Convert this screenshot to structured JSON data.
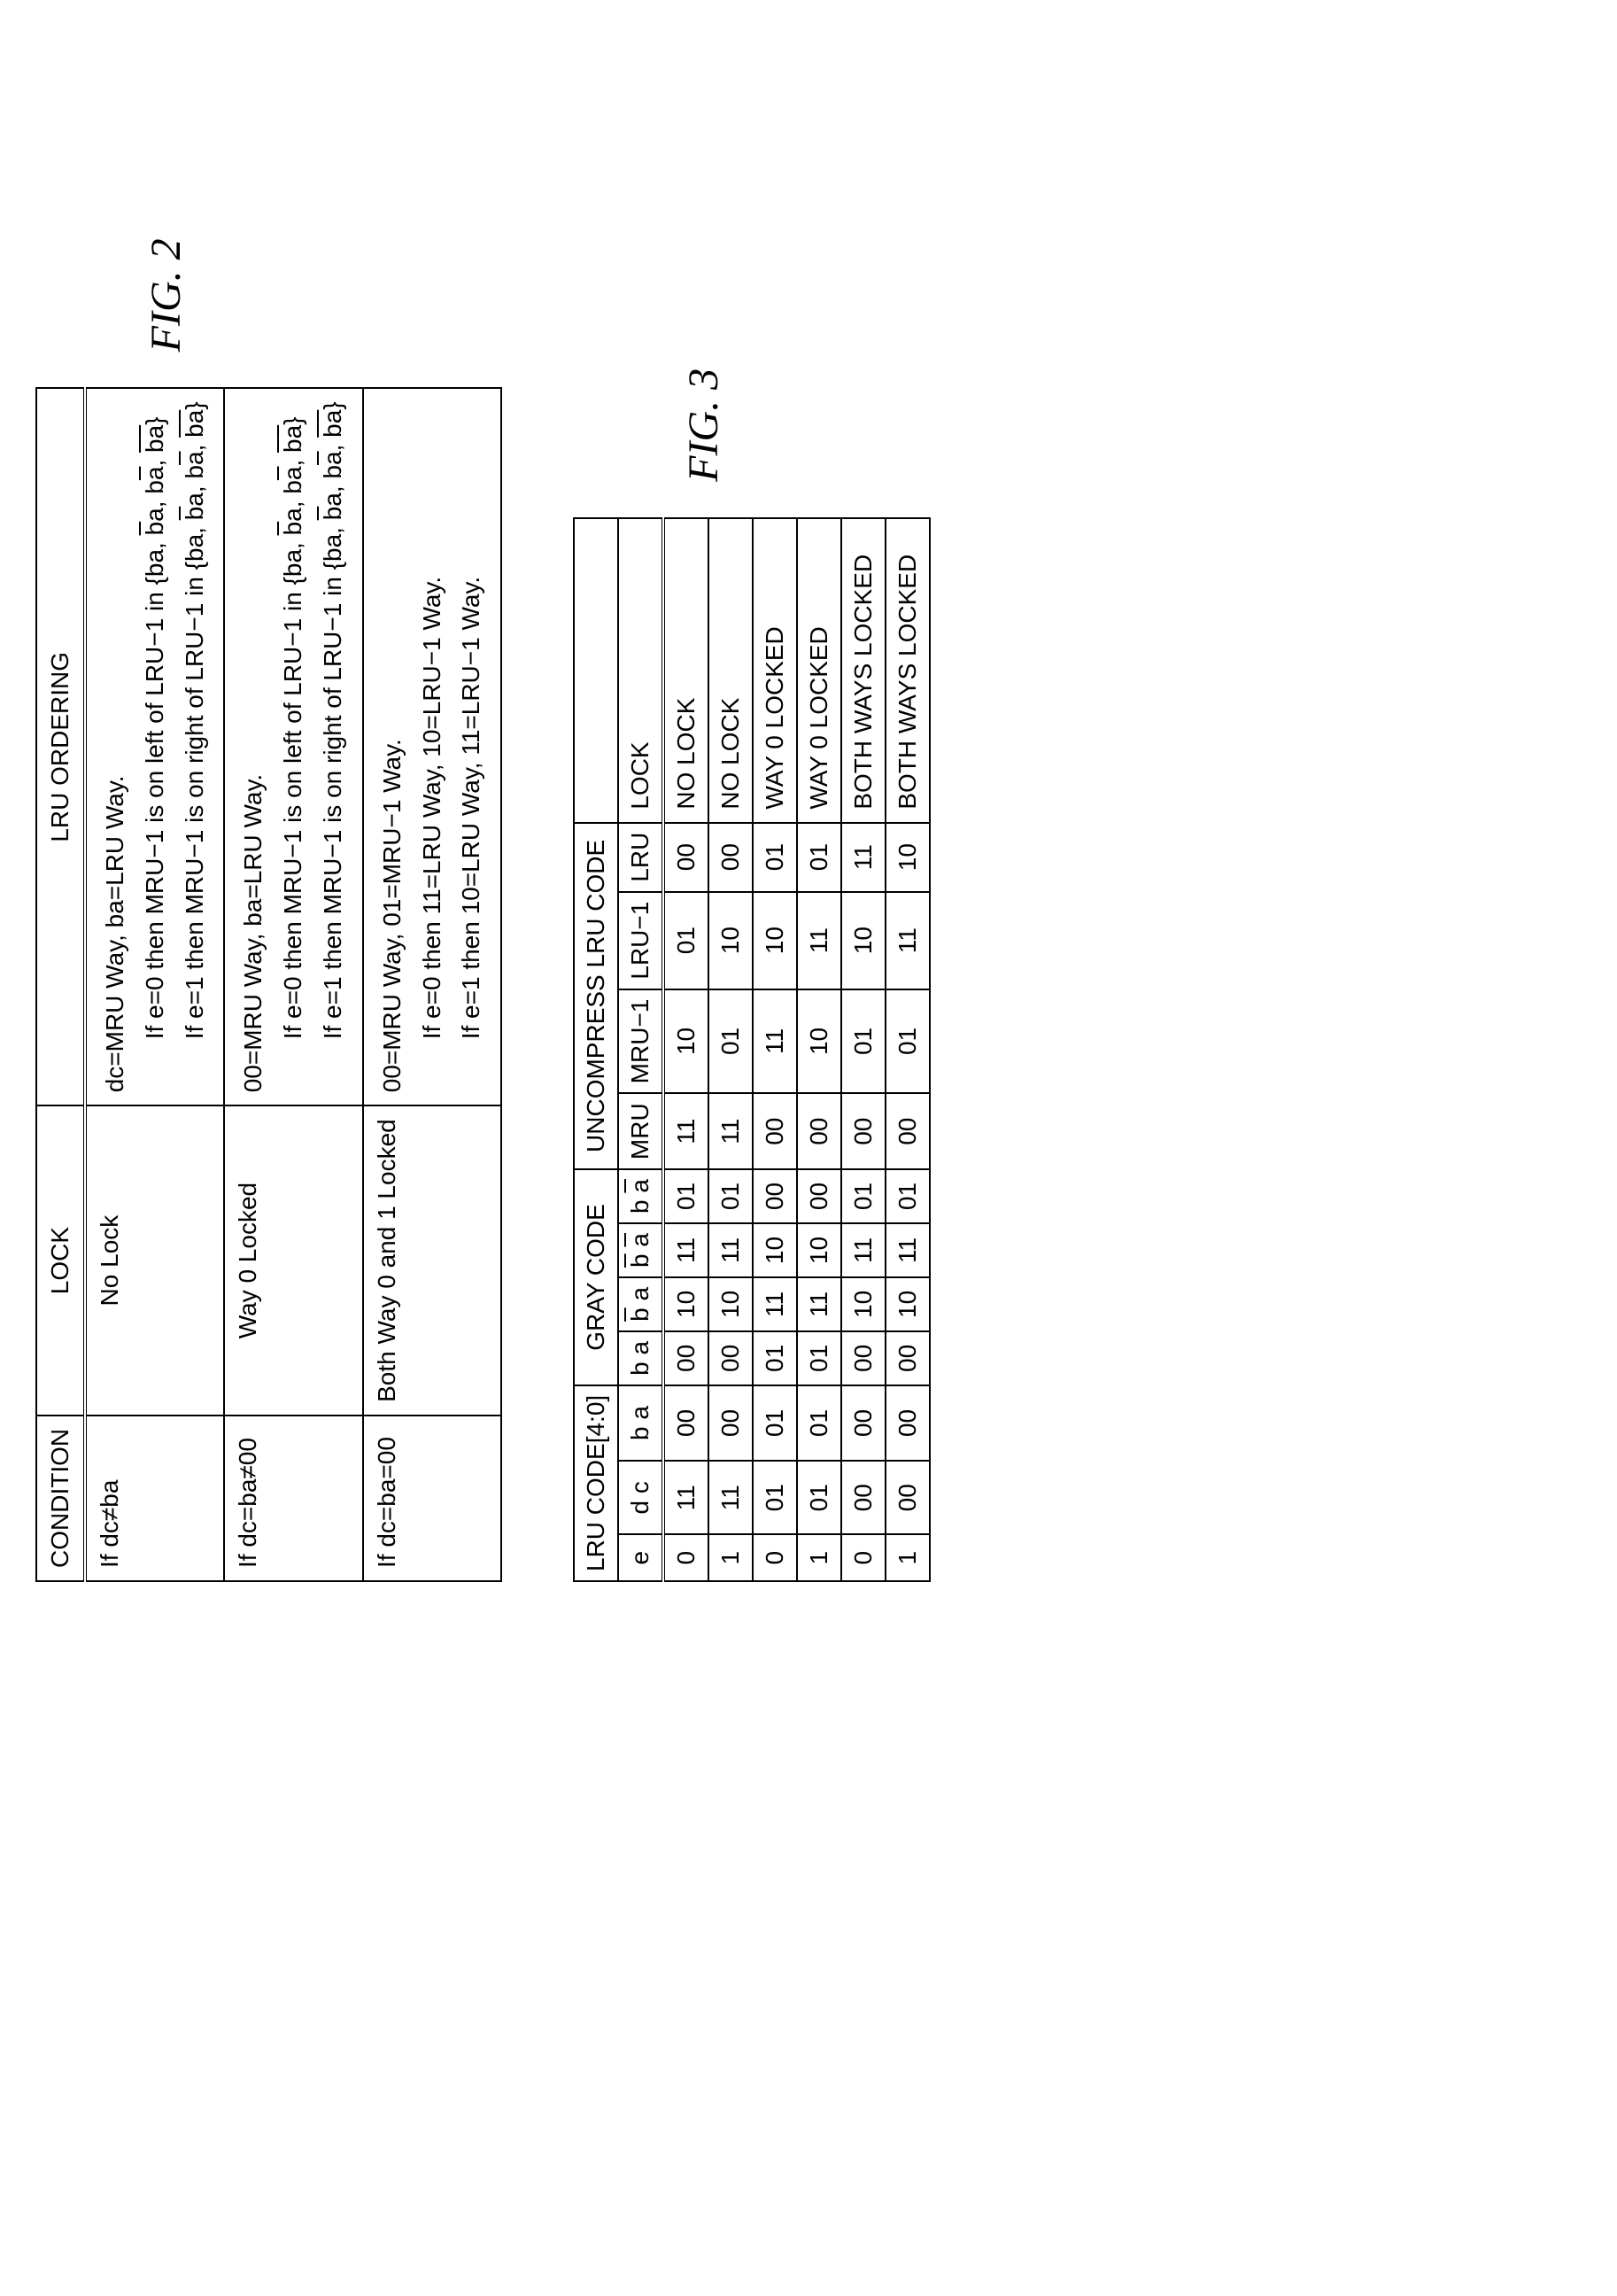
{
  "figure2": {
    "label": "FIG. 2",
    "columns": [
      "CONDITION",
      "LOCK",
      "LRU ORDERING"
    ],
    "rows": [
      {
        "condition": "If dc≠ba",
        "lock": "No Lock",
        "ordering": {
          "line1": "dc=MRU Way, ba=LRU Way.",
          "line2_prefix": "If e=0 then MRU−1 is on left of LRU−1 in {ba, ",
          "line2_ov1": "b",
          "line2_mid1": "a, b",
          "line2_ov2": "a",
          "line2_mid2": ", ",
          "line2_ov3": "b",
          "line2_ov3b": "a",
          "line2_suffix": "}",
          "line3_prefix": "If e=1 then MRU−1 is on right of LRU−1 in {ba, ",
          "line3_ov1": "b",
          "line3_mid1": "a, b",
          "line3_ov2": "a",
          "line3_mid2": ", ",
          "line3_ov3": "b",
          "line3_ov3b": "a",
          "line3_suffix": "}"
        }
      },
      {
        "condition": "If dc=ba≠00",
        "lock": "Way 0 Locked",
        "ordering": {
          "line1": "00=MRU Way, ba=LRU Way.",
          "line2_prefix": "If e=0 then MRU−1 is on left of LRU−1 in {ba, ",
          "line2_ov1": "b",
          "line2_mid1": "a, b",
          "line2_ov2": "a",
          "line2_mid2": ", ",
          "line2_ov3": "b",
          "line2_ov3b": "a",
          "line2_suffix": "}",
          "line3_prefix": "If e=1 then MRU−1 is on right of LRU−1 in {ba, ",
          "line3_ov1": "b",
          "line3_mid1": "a, b",
          "line3_ov2": "a",
          "line3_mid2": ", ",
          "line3_ov3": "b",
          "line3_ov3b": "a",
          "line3_suffix": "}"
        }
      },
      {
        "condition": "If dc=ba=00",
        "lock": "Both Way 0 and 1 Locked",
        "ordering": {
          "line1": "00=MRU Way, 01=MRU−1 Way.",
          "line2": "If e=0 then 11=LRU Way, 10=LRU−1 Way.",
          "line3": "If e=1 then 10=LRU Way, 11=LRU−1 Way."
        }
      }
    ]
  },
  "figure3": {
    "label": "FIG. 3",
    "group_headers": [
      "LRU CODE[4:0]",
      "GRAY CODE",
      "UNCOMPRESS LRU CODE",
      ""
    ],
    "sub_headers": [
      "e",
      "d c",
      "b a",
      "b a",
      "b̄ a",
      "b̄ ā",
      "b ā",
      "MRU",
      "MRU−1",
      "LRU−1",
      "LRU",
      "LOCK"
    ],
    "rows": [
      {
        "e": "0",
        "dc": "11",
        "ba": "00",
        "c1": "00",
        "c2": "10",
        "c3": "11",
        "c4": "01",
        "mru": "11",
        "mru1": "10",
        "lru1": "01",
        "lru": "00",
        "lock": "NO LOCK"
      },
      {
        "e": "1",
        "dc": "11",
        "ba": "00",
        "c1": "00",
        "c2": "10",
        "c3": "11",
        "c4": "01",
        "mru": "11",
        "mru1": "01",
        "lru1": "10",
        "lru": "00",
        "lock": "NO LOCK"
      },
      {
        "e": "0",
        "dc": "01",
        "ba": "01",
        "c1": "01",
        "c2": "11",
        "c3": "10",
        "c4": "00",
        "mru": "00",
        "mru1": "11",
        "lru1": "10",
        "lru": "01",
        "lock": "WAY 0 LOCKED"
      },
      {
        "e": "1",
        "dc": "01",
        "ba": "01",
        "c1": "01",
        "c2": "11",
        "c3": "10",
        "c4": "00",
        "mru": "00",
        "mru1": "10",
        "lru1": "11",
        "lru": "01",
        "lock": "WAY 0 LOCKED"
      },
      {
        "e": "0",
        "dc": "00",
        "ba": "00",
        "c1": "00",
        "c2": "10",
        "c3": "11",
        "c4": "01",
        "mru": "00",
        "mru1": "01",
        "lru1": "10",
        "lru": "11",
        "lock": "BOTH WAYS LOCKED"
      },
      {
        "e": "1",
        "dc": "00",
        "ba": "00",
        "c1": "00",
        "c2": "10",
        "c3": "11",
        "c4": "01",
        "mru": "00",
        "mru1": "01",
        "lru1": "11",
        "lru": "10",
        "lock": "BOTH WAYS LOCKED"
      }
    ]
  },
  "styling": {
    "border_color": "#000000",
    "background_color": "#ffffff",
    "font_size_table": 28,
    "font_size_label": 48,
    "label_font": "Times New Roman, serif",
    "table_font": "Arial, Helvetica, sans-serif"
  }
}
